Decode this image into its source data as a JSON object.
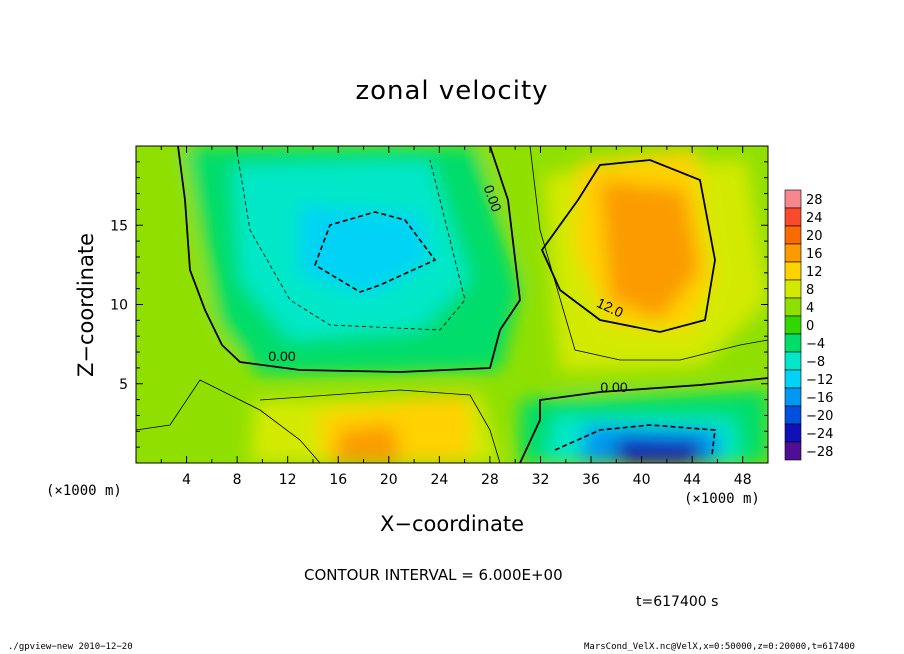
{
  "chart_data": {
    "type": "heatmap",
    "title": "zonal velocity",
    "xlabel": "X−coordinate",
    "ylabel": "Z−coordinate",
    "x_unit_label": "(×1000 m)",
    "xlim": [
      0,
      50
    ],
    "ylim": [
      0,
      20
    ],
    "xticks": [
      4,
      8,
      12,
      16,
      20,
      24,
      28,
      32,
      36,
      40,
      44,
      48
    ],
    "yticks": [
      5,
      10,
      15
    ],
    "colorbar": {
      "levels": [
        28,
        24,
        20,
        16,
        12,
        8,
        4,
        0,
        -4,
        -8,
        -12,
        -16,
        -20,
        -24,
        -28
      ],
      "label_text": [
        "28",
        "24",
        "20",
        "16",
        "12",
        "8",
        "4",
        "0",
        "−4",
        "−8",
        "−12",
        "−16",
        "−20",
        "−24",
        "−28"
      ],
      "colors": [
        "#f7878c",
        "#f94a2c",
        "#f96a00",
        "#fb9b00",
        "#ffd200",
        "#d3ea00",
        "#8fe000",
        "#33d700",
        "#00dd6a",
        "#00e8c8",
        "#00d3f5",
        "#0098f2",
        "#0050e0",
        "#1010b8",
        "#4e0f95"
      ]
    },
    "contour_interval_text": "CONTOUR INTERVAL = 6.000E+00",
    "contour_labels": [
      "0.00",
      "0.00",
      "0.00",
      "12.0"
    ],
    "features": [
      {
        "kind": "negative core",
        "x": 18,
        "z": 13.5,
        "value": -13
      },
      {
        "kind": "positive core",
        "x": 41,
        "z": 13,
        "value": 17
      },
      {
        "kind": "negative core",
        "x": 42,
        "z": 0.5,
        "value": -25
      },
      {
        "kind": "positive core",
        "x": 20,
        "z": 1,
        "value": 16
      },
      {
        "kind": "positive core",
        "x": 23,
        "z": 3,
        "value": 12
      }
    ]
  },
  "annotations": {
    "time": "t=617400 s",
    "footer_left": "./gpview−new   2010−12−20",
    "footer_right": "MarsCond_VelX.nc@VelX,x=0:50000,z=0:20000,t=617400"
  }
}
